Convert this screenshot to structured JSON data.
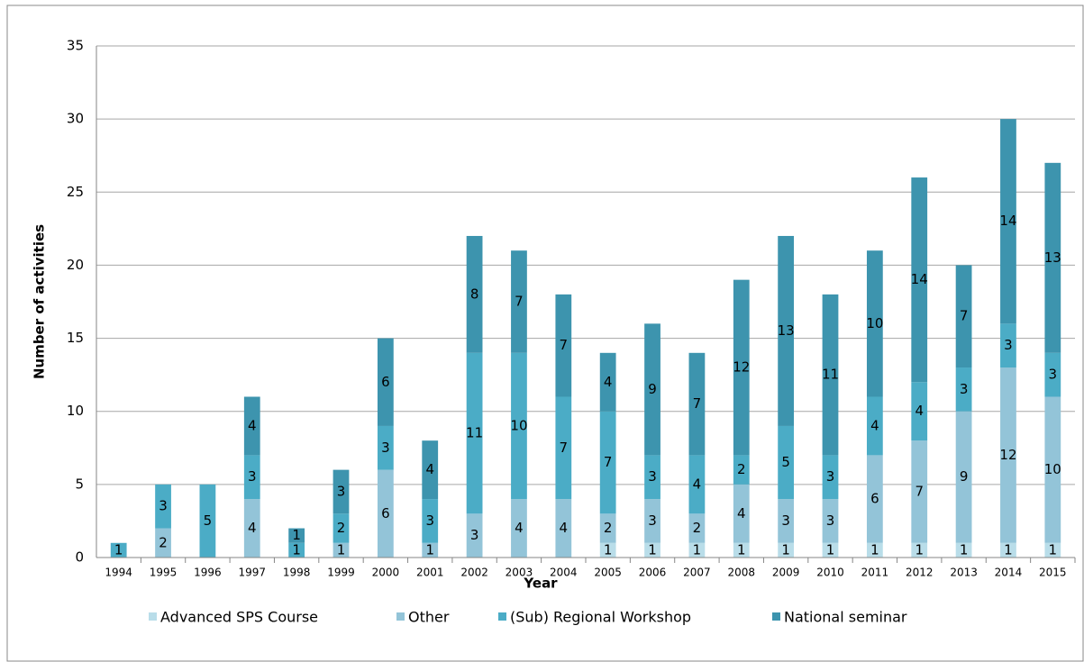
{
  "chart_data": {
    "type": "stacked_bar",
    "x_label": "Year",
    "y_label": "Number of activities",
    "categories": [
      "1994",
      "1995",
      "1996",
      "1997",
      "1998",
      "1999",
      "2000",
      "2001",
      "2002",
      "2003",
      "2004",
      "2005",
      "2006",
      "2007",
      "2008",
      "2009",
      "2010",
      "2011",
      "2012",
      "2013",
      "2014",
      "2015"
    ],
    "series": [
      {
        "name": "Advanced SPS Course",
        "color": "#b9dde9",
        "values": [
          0,
          0,
          0,
          0,
          0,
          0,
          0,
          0,
          0,
          0,
          0,
          1,
          1,
          1,
          1,
          1,
          1,
          1,
          1,
          1,
          1,
          1
        ]
      },
      {
        "name": "Other",
        "color": "#93c4d8",
        "values": [
          0,
          2,
          0,
          4,
          0,
          1,
          6,
          1,
          3,
          4,
          4,
          2,
          3,
          2,
          4,
          3,
          3,
          6,
          7,
          9,
          12,
          10
        ]
      },
      {
        "name": "(Sub) Regional Workshop",
        "color": "#4bacc6",
        "values": [
          1,
          3,
          5,
          3,
          1,
          2,
          3,
          3,
          11,
          10,
          7,
          7,
          3,
          4,
          2,
          5,
          3,
          4,
          4,
          3,
          3,
          3
        ]
      },
      {
        "name": "National seminar",
        "color": "#3d94ae",
        "values": [
          0,
          0,
          0,
          4,
          1,
          3,
          6,
          4,
          8,
          7,
          7,
          4,
          9,
          7,
          12,
          13,
          11,
          10,
          14,
          7,
          14,
          13
        ]
      }
    ],
    "ylim": [
      0,
      35
    ],
    "yticks": [
      0,
      5,
      10,
      15,
      20,
      25,
      30,
      35
    ],
    "grid": true,
    "legend": "bottom"
  }
}
